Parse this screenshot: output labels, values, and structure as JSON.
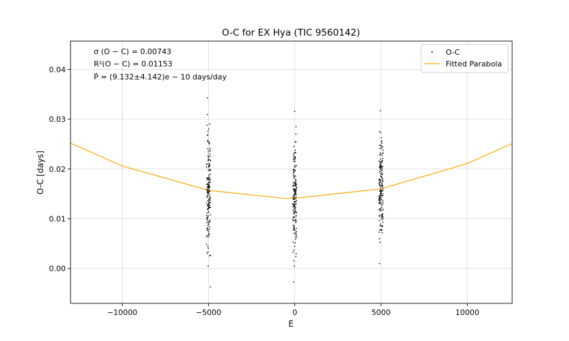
{
  "chart_data": {
    "type": "scatter",
    "title": "O-C for EX Hya (TIC 9560142)",
    "xlabel": "E",
    "ylabel": "O-C [days]",
    "xlim": [
      -13000,
      12600
    ],
    "ylim": [
      -0.007,
      0.0457
    ],
    "grid": true,
    "legend_position": "top-right",
    "x_ticks": [
      -10000,
      -5000,
      0,
      5000,
      10000
    ],
    "x_tick_labels": [
      "−10000",
      "−5000",
      "0",
      "5000",
      "10000"
    ],
    "y_ticks": [
      0.0,
      0.01,
      0.02,
      0.03,
      0.04
    ],
    "y_tick_labels": [
      "0.00",
      "0.01",
      "0.02",
      "0.03",
      "0.04"
    ],
    "annotations": [
      "σ (O − C) = 0.00743",
      "R²(O − C) = 0.01153",
      "Ṗ = (9.132±4.142)e − 10 days/day"
    ],
    "series": [
      {
        "name": "O-C",
        "kind": "scatter",
        "color": "#000000",
        "clusters": [
          {
            "x_center": -5000,
            "x_spread": 120,
            "y_min": -0.0037,
            "y_max": 0.0343,
            "count": 170
          },
          {
            "x_center": 0,
            "x_spread": 110,
            "y_min": -0.0027,
            "y_max": 0.0316,
            "count": 170
          },
          {
            "x_center": 5000,
            "x_spread": 120,
            "y_min": 0.001,
            "y_max": 0.0317,
            "count": 170
          }
        ]
      },
      {
        "name": "Fitted Parabola",
        "kind": "line",
        "color": "#FFA500",
        "x": [
          -13000,
          -10000,
          -5000,
          -600,
          0,
          5000,
          10000,
          12600
        ],
        "y": [
          0.0252,
          0.0206,
          0.0157,
          0.0141,
          0.0141,
          0.016,
          0.0211,
          0.0251
        ]
      }
    ]
  }
}
